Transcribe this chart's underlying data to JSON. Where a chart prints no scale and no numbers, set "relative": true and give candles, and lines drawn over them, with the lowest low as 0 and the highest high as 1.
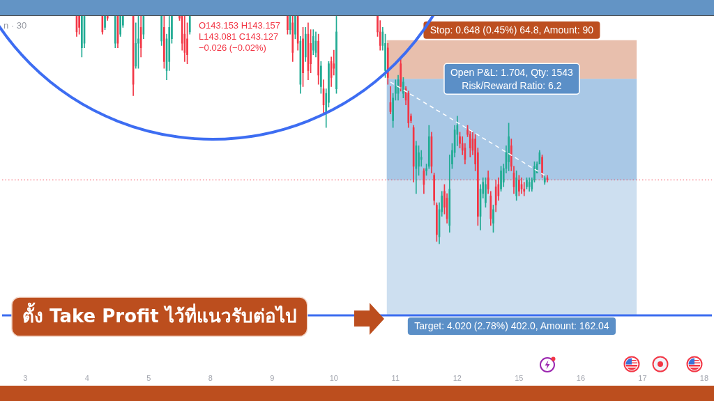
{
  "chart_data": {
    "type": "candlestick",
    "relative": true,
    "annotations": [
      "n · 30",
      "O143.153 H143.157 L143.081 C143.127 −0.026 (−0.02%)"
    ],
    "categories": [
      null,
      null,
      null,
      null,
      null,
      null,
      null,
      null,
      null,
      "3",
      null,
      null,
      null,
      null,
      null,
      null,
      null,
      null,
      null,
      null,
      null,
      null,
      null,
      null,
      null,
      null,
      null,
      null,
      null,
      null,
      null,
      null,
      null,
      "4",
      null,
      null,
      null,
      null,
      null,
      null,
      null,
      null,
      null,
      null,
      null,
      null,
      null,
      null,
      null,
      null,
      null,
      null,
      null,
      null,
      null,
      null,
      null,
      "5",
      null,
      null,
      null,
      null,
      null,
      null,
      null,
      null,
      null,
      null,
      null,
      null,
      null,
      null,
      null,
      null,
      null,
      null,
      null,
      null,
      null,
      null,
      null,
      "8",
      null,
      null,
      null,
      null,
      null,
      null,
      null,
      null,
      null,
      null,
      null,
      null,
      null,
      null,
      null,
      null,
      null,
      null,
      null,
      null,
      null,
      null,
      null,
      "9",
      null,
      null,
      null,
      null,
      null,
      null,
      null,
      null,
      null,
      null,
      null,
      null,
      null,
      null,
      null,
      null,
      null,
      null,
      null,
      null,
      null,
      null,
      null,
      "10",
      null,
      null,
      null,
      null,
      null,
      null,
      null,
      null,
      null,
      null,
      null,
      null,
      null,
      null,
      null,
      null,
      null,
      null,
      null,
      null,
      null,
      null,
      null,
      "11",
      null,
      null,
      null,
      null,
      null,
      null,
      null,
      null,
      null,
      null,
      null,
      null,
      null,
      null,
      null,
      null,
      null,
      null,
      null,
      null,
      null,
      null,
      null,
      "12",
      null,
      null,
      null,
      null,
      null,
      null,
      null,
      null,
      null,
      null,
      null,
      null,
      null,
      null,
      null,
      null,
      null,
      null,
      null,
      null,
      null,
      null,
      null,
      "15",
      null,
      null,
      null,
      null,
      null,
      null,
      null,
      null,
      null,
      null,
      null,
      null,
      null,
      null,
      null,
      null,
      null,
      null,
      null,
      null,
      null,
      null,
      null,
      "16",
      null,
      null,
      null,
      null,
      null,
      null,
      null,
      null,
      null,
      null,
      null,
      null,
      null,
      null,
      null,
      null,
      null,
      null,
      null,
      null,
      null,
      null,
      null,
      "17",
      null,
      null,
      null,
      null,
      null,
      null,
      null,
      null,
      null,
      null,
      null,
      null,
      null,
      null,
      null,
      null,
      null,
      null,
      null,
      null,
      null,
      null,
      null,
      "18",
      null,
      null,
      null
    ],
    "ohlc": [
      null,
      null,
      null,
      null,
      null,
      null,
      null,
      null,
      null,
      null,
      null,
      null,
      null,
      null,
      null,
      null,
      null,
      null,
      null,
      null,
      null,
      null,
      null,
      null,
      null,
      null,
      null,
      null,
      null,
      [
        1.0,
        1.0,
        0.91,
        0.93
      ],
      [
        1.0,
        1.0,
        0.92,
        0.95
      ],
      [
        0.86,
        1.0,
        0.82,
        1.0
      ],
      [
        0.88,
        1.0,
        0.86,
        1.0
      ],
      null,
      null,
      null,
      null,
      null,
      null,
      [
        1.0,
        1.0,
        0.92,
        0.93
      ],
      [
        0.95,
        1.0,
        0.94,
        1.0
      ],
      [
        1.0,
        1.0,
        0.98,
        0.99
      ],
      null,
      null,
      [
        0.88,
        1.0,
        0.86,
        1.0
      ],
      [
        1.0,
        1.0,
        0.86,
        0.88
      ],
      [
        0.92,
        1.0,
        0.91,
        1.0
      ],
      [
        0.96,
        1.0,
        0.95,
        1.0
      ],
      null,
      null,
      null,
      [
        1.0,
        1.0,
        0.65,
        0.7
      ],
      [
        0.78,
        0.97,
        0.77,
        0.88
      ],
      [
        0.88,
        1.0,
        0.77,
        0.9
      ],
      [
        0.95,
        1.0,
        0.82,
        0.86
      ],
      [
        0.92,
        1.0,
        0.9,
        1.0
      ],
      null,
      null,
      null,
      null,
      null,
      null,
      [
        0.89,
        1.0,
        0.87,
        1.0
      ],
      [
        0.95,
        1.0,
        0.77,
        0.8
      ],
      [
        0.76,
        0.92,
        0.72,
        0.9
      ],
      [
        0.8,
        1.0,
        0.76,
        0.95
      ],
      [
        0.9,
        1.0,
        0.88,
        1.0
      ],
      null,
      null,
      [
        1.0,
        1.0,
        0.98,
        0.99
      ],
      [
        1.0,
        1.0,
        0.85,
        0.88
      ],
      [
        0.92,
        1.0,
        0.8,
        0.84
      ],
      [
        0.9,
        0.97,
        0.79,
        0.83
      ],
      [
        0.93,
        1.0,
        0.92,
        1.0
      ],
      null,
      null,
      null,
      null,
      null,
      null,
      null,
      null,
      null,
      null,
      null,
      null,
      null,
      null,
      null,
      null,
      null,
      null,
      null,
      null,
      null,
      null,
      null,
      null,
      null,
      null,
      null,
      null,
      null,
      null,
      null,
      null,
      null,
      null,
      null,
      null,
      null,
      [
        1.0,
        1.0,
        0.92,
        0.94
      ],
      [
        0.94,
        1.0,
        0.92,
        1.0
      ],
      [
        0.97,
        1.0,
        0.8,
        0.84
      ],
      [
        0.92,
        1.0,
        0.9,
        1.0
      ],
      [
        1.0,
        1.0,
        0.85,
        0.88
      ],
      [
        0.7,
        0.91,
        0.66,
        0.89
      ],
      [
        0.9,
        0.95,
        0.69,
        0.75
      ],
      [
        0.82,
        0.95,
        0.8,
        0.92
      ],
      [
        0.92,
        0.97,
        0.72,
        0.76
      ],
      [
        0.88,
        0.94,
        0.75,
        0.79
      ],
      [
        0.85,
        0.94,
        0.83,
        0.91
      ],
      [
        0.84,
        0.93,
        0.82,
        0.89
      ],
      [
        0.89,
        0.92,
        0.7,
        0.74
      ],
      [
        0.69,
        0.8,
        0.66,
        0.78
      ],
      [
        0.68,
        0.72,
        0.57,
        0.61
      ],
      [
        0.58,
        0.68,
        0.51,
        0.66
      ],
      [
        0.62,
        0.8,
        0.6,
        0.79
      ],
      [
        0.8,
        0.82,
        0.69,
        0.73
      ],
      [
        0.79,
        0.85,
        0.74,
        0.77
      ],
      [
        0.68,
        1.0,
        0.66,
        0.93
      ],
      null,
      null,
      null,
      null,
      null,
      null,
      null,
      null,
      null,
      null,
      null,
      null,
      null,
      null,
      null,
      [
        1.0,
        1.0,
        0.91,
        0.93
      ],
      [
        0.93,
        0.98,
        0.85,
        0.87
      ],
      [
        0.87,
        0.95,
        0.85,
        0.93
      ],
      [
        0.76,
        0.92,
        0.73,
        0.88
      ],
      [
        0.86,
        0.88,
        0.7,
        0.73
      ],
      [
        0.62,
        0.69,
        0.57,
        0.58
      ],
      [
        0.54,
        0.66,
        0.51,
        0.64
      ],
      [
        0.66,
        0.72,
        0.63,
        0.69
      ],
      [
        0.66,
        0.74,
        0.63,
        0.72
      ],
      [
        0.79,
        0.81,
        0.67,
        0.69
      ],
      [
        0.66,
        0.73,
        0.64,
        0.71
      ],
      [
        0.68,
        0.69,
        0.61,
        0.63
      ],
      [
        0.66,
        0.67,
        0.51,
        0.53
      ],
      [
        0.56,
        0.57,
        0.53,
        0.54
      ],
      [
        0.51,
        0.52,
        0.27,
        0.34
      ],
      [
        0.33,
        0.45,
        0.22,
        0.43
      ],
      [
        0.34,
        0.43,
        0.3,
        0.4
      ],
      [
        0.37,
        0.41,
        0.34,
        0.38
      ],
      [
        0.32,
        0.33,
        0.22,
        0.26
      ],
      [
        0.32,
        0.35,
        0.3,
        0.33
      ],
      [
        0.34,
        0.52,
        0.33,
        0.47
      ],
      [
        0.47,
        0.49,
        0.31,
        0.34
      ],
      [
        0.3,
        0.31,
        0.17,
        0.19
      ],
      [
        0.17,
        0.18,
        0.01,
        0.04
      ],
      [
        0.03,
        0.18,
        0.0,
        0.15
      ],
      [
        0.14,
        0.23,
        0.12,
        0.21
      ],
      [
        0.23,
        0.26,
        0.13,
        0.16
      ],
      [
        0.2,
        0.22,
        0.09,
        0.11
      ],
      [
        0.08,
        0.39,
        0.05,
        0.24
      ],
      [
        0.35,
        0.44,
        0.33,
        0.41
      ],
      [
        0.4,
        0.52,
        0.38,
        0.5
      ],
      [
        0.48,
        0.56,
        0.43,
        0.52
      ],
      [
        0.47,
        0.49,
        0.42,
        0.44
      ],
      [
        0.44,
        0.47,
        0.39,
        0.41
      ],
      [
        0.42,
        0.44,
        0.35,
        0.37
      ],
      [
        0.5,
        0.52,
        0.47,
        0.48
      ],
      [
        0.48,
        0.5,
        0.38,
        0.42
      ],
      [
        0.46,
        0.49,
        0.39,
        0.41
      ],
      [
        0.46,
        0.48,
        0.32,
        0.35
      ],
      [
        0.4,
        0.42,
        0.08,
        0.12
      ],
      [
        0.12,
        0.26,
        0.06,
        0.24
      ],
      [
        0.22,
        0.29,
        0.2,
        0.27
      ],
      [
        0.18,
        0.29,
        0.16,
        0.26
      ],
      [
        0.29,
        0.32,
        0.22,
        0.24
      ],
      [
        0.21,
        0.23,
        0.08,
        0.11
      ],
      [
        0.09,
        0.17,
        0.05,
        0.15
      ],
      [
        0.25,
        0.28,
        0.14,
        0.17
      ],
      [
        0.26,
        0.29,
        0.19,
        0.21
      ],
      [
        0.24,
        0.34,
        0.23,
        0.32
      ],
      [
        0.27,
        0.35,
        0.25,
        0.33
      ],
      [
        0.33,
        0.43,
        0.31,
        0.4
      ],
      [
        0.36,
        0.53,
        0.32,
        0.47
      ],
      [
        0.43,
        0.46,
        0.32,
        0.34
      ],
      [
        0.31,
        0.34,
        0.22,
        0.25
      ],
      [
        0.21,
        0.32,
        0.19,
        0.29
      ],
      [
        0.28,
        0.3,
        0.21,
        0.23
      ],
      [
        0.26,
        0.29,
        0.22,
        0.24
      ],
      [
        0.24,
        0.27,
        0.21,
        0.23
      ],
      [
        0.25,
        0.29,
        0.24,
        0.28
      ],
      [
        0.25,
        0.29,
        0.23,
        0.27
      ],
      [
        0.24,
        0.29,
        0.23,
        0.28
      ],
      [
        0.28,
        0.36,
        0.27,
        0.34
      ],
      [
        0.31,
        0.36,
        0.31,
        0.35
      ],
      [
        0.35,
        0.41,
        0.35,
        0.4
      ],
      [
        0.38,
        0.39,
        0.29,
        0.31
      ],
      [
        0.27,
        0.3,
        0.26,
        0.29
      ],
      [
        0.29,
        0.3,
        0.27,
        0.28
      ],
      null,
      null,
      null,
      null,
      null,
      null,
      null,
      null,
      null,
      null,
      null,
      null,
      null,
      null,
      null,
      null,
      null,
      null,
      null,
      null,
      null,
      null,
      null,
      null,
      null,
      null,
      null,
      null,
      null,
      null,
      null,
      null,
      null,
      null,
      null,
      null,
      null,
      null,
      null,
      null,
      null,
      null,
      null,
      null,
      null,
      null,
      null,
      null,
      null,
      null,
      null,
      null,
      null,
      null,
      null,
      null,
      null,
      null,
      null,
      null,
      null,
      null,
      null,
      null
    ],
    "colors": [
      null,
      null,
      null,
      null,
      null,
      null,
      null,
      null,
      null,
      null,
      null,
      null,
      null,
      null,
      null,
      null,
      null,
      null,
      null,
      null,
      null,
      null,
      null,
      null,
      null,
      null,
      null,
      null,
      null,
      "#f23645",
      "#f23645",
      "#22ab94",
      "#22ab94",
      null,
      null,
      null,
      null,
      null,
      null,
      "#f23645",
      "#22ab94",
      "#f23645",
      null,
      null,
      "#22ab94",
      "#f23645",
      "#22ab94",
      "#22ab94",
      null,
      null,
      null,
      "#f23645",
      "#22ab94",
      "#22ab94",
      "#f23645",
      "#22ab94",
      null,
      null,
      null,
      null,
      null,
      null,
      "#22ab94",
      "#f23645",
      "#22ab94",
      "#22ab94",
      "#22ab94",
      null,
      null,
      "#f23645",
      "#f23645",
      "#f23645",
      "#f23645",
      "#22ab94",
      null,
      null,
      null,
      null,
      null,
      null,
      null,
      null,
      null,
      null,
      null,
      null,
      null,
      null,
      null,
      null,
      null,
      null,
      null,
      null,
      null,
      null,
      null,
      null,
      null,
      null,
      null,
      null,
      null,
      null,
      null,
      null,
      null,
      null,
      null,
      null,
      null,
      "#f23645",
      "#22ab94",
      "#f23645",
      "#22ab94",
      "#f23645",
      "#22ab94",
      "#f23645",
      "#22ab94",
      "#f23645",
      "#f23645",
      "#22ab94",
      "#22ab94",
      "#f23645",
      "#22ab94",
      "#f23645",
      "#22ab94",
      "#22ab94",
      "#f23645",
      "#f23645",
      "#22ab94",
      null,
      null,
      null,
      null,
      null,
      null,
      null,
      null,
      null,
      null,
      null,
      null,
      null,
      null,
      null,
      "#f23645",
      "#f23645",
      "#22ab94",
      "#22ab94",
      "#f23645",
      "#f23645",
      "#22ab94",
      "#22ab94",
      "#22ab94",
      "#f23645",
      "#22ab94",
      "#f23645",
      "#f23645",
      "#f23645",
      "#f23645",
      "#22ab94",
      "#22ab94",
      "#22ab94",
      "#f23645",
      "#22ab94",
      "#22ab94",
      "#f23645",
      "#f23645",
      "#f23645",
      "#22ab94",
      "#22ab94",
      "#f23645",
      "#f23645",
      "#22ab94",
      "#22ab94",
      "#22ab94",
      "#22ab94",
      "#f23645",
      "#f23645",
      "#f23645",
      "#f23645",
      "#f23645",
      "#f23645",
      "#f23645",
      "#f23645",
      "#22ab94",
      "#22ab94",
      "#22ab94",
      "#f23645",
      "#f23645",
      "#22ab94",
      "#f23645",
      "#f23645",
      "#22ab94",
      "#22ab94",
      "#22ab94",
      "#22ab94",
      "#f23645",
      "#f23645",
      "#22ab94",
      "#f23645",
      "#f23645",
      "#f23645",
      "#22ab94",
      "#22ab94",
      "#22ab94",
      "#22ab94",
      "#22ab94",
      "#22ab94",
      "#f23645",
      "#22ab94",
      "#f23645",
      null,
      null,
      null,
      null,
      null,
      null,
      null,
      null,
      null,
      null,
      null,
      null,
      null,
      null,
      null,
      null,
      null,
      null,
      null,
      null,
      null,
      null,
      null,
      null,
      null,
      null,
      null,
      null,
      null,
      null,
      null,
      null,
      null,
      null,
      null,
      null,
      null,
      null,
      null,
      null,
      null,
      null,
      null,
      null,
      null,
      null,
      null,
      null,
      null,
      null,
      null,
      null,
      null,
      null,
      null,
      null,
      null,
      null,
      null,
      null,
      null,
      null,
      null,
      null
    ],
    "series": [
      {
        "type": "line",
        "color": "#ffffff",
        "line_style": "dashed",
        "values": [
          null,
          null,
          null,
          null,
          null,
          null,
          null,
          null,
          null,
          null,
          null,
          null,
          null,
          null,
          null,
          null,
          null,
          null,
          null,
          null,
          null,
          null,
          null,
          null,
          null,
          null,
          null,
          null,
          null,
          null,
          null,
          null,
          null,
          null,
          null,
          null,
          null,
          null,
          null,
          null,
          null,
          null,
          null,
          null,
          null,
          null,
          null,
          null,
          null,
          null,
          null,
          null,
          null,
          null,
          null,
          null,
          null,
          null,
          null,
          null,
          null,
          null,
          null,
          null,
          null,
          null,
          null,
          null,
          null,
          null,
          null,
          null,
          null,
          null,
          null,
          null,
          null,
          null,
          null,
          null,
          null,
          null,
          null,
          null,
          null,
          null,
          null,
          null,
          null,
          null,
          null,
          null,
          null,
          null,
          null,
          null,
          null,
          null,
          null,
          null,
          null,
          null,
          null,
          null,
          null,
          null,
          null,
          null,
          null,
          null,
          null,
          null,
          null,
          null,
          null,
          null,
          null,
          null,
          null,
          null,
          null,
          null,
          null,
          null,
          null,
          null,
          null,
          null,
          null,
          null,
          null,
          null,
          null,
          null,
          null,
          null,
          null,
          null,
          null,
          null,
          null,
          null,
          null,
          null,
          null,
          null,
          null,
          null,
          null,
          null,
          null,
          0.71,
          0.703,
          0.696,
          0.69,
          0.683,
          0.676,
          0.669,
          0.662,
          0.655,
          0.649,
          0.642,
          0.635,
          0.628,
          0.621,
          0.614,
          0.608,
          0.601,
          0.594,
          0.587,
          0.58,
          0.573,
          0.567,
          0.56,
          0.553,
          0.546,
          0.539,
          0.532,
          0.526,
          0.519,
          0.512,
          0.505,
          0.498,
          0.491,
          0.485,
          0.478,
          0.471,
          0.464,
          0.457,
          0.45,
          0.444,
          0.437,
          0.43,
          0.423,
          0.416,
          0.409,
          0.403,
          0.396,
          0.389,
          0.382,
          0.375,
          0.368,
          0.362,
          0.355,
          0.348,
          0.341,
          0.334,
          0.327,
          0.321,
          0.314,
          0.307,
          0.3,
          null,
          null,
          null,
          null,
          null,
          null,
          null,
          null,
          null,
          null,
          null,
          null,
          null,
          null,
          null,
          null,
          null,
          null,
          null,
          null,
          null,
          null,
          null,
          null,
          null,
          null,
          null,
          null,
          null,
          null,
          null,
          null,
          null,
          null,
          null,
          null,
          null,
          null,
          null,
          null,
          null,
          null,
          null,
          null,
          null,
          null,
          null,
          null,
          null,
          null,
          null,
          null,
          null,
          null,
          null,
          null,
          null,
          null,
          null,
          null,
          null,
          null,
          null,
          null,
          null
        ]
      }
    ],
    "tick_labels": "x",
    "grid": false,
    "legend": false,
    "marker": "none",
    "ref_lines": [
      {
        "axis": "y",
        "value": -0.315,
        "label": "ตั้ง Take Profit ไว้ที่แนวรับต่อไป",
        "color": "#3b6cf0"
      },
      {
        "axis": "y",
        "value": 0.28,
        "color": "#f23645",
        "line_style": "dotted"
      }
    ],
    "bands": [
      {
        "axis": "y",
        "from": 0.724,
        "to": 0.894,
        "label": "Stop: 0.648 (0.45%) 64.8, Amount: 90",
        "color": "#e8bfad"
      },
      {
        "axis": "y",
        "from": -0.315,
        "to": 0.724,
        "label": "Target: 4.020 (2.78%) 402.0, Amount: 162.04",
        "color": "#cddff0"
      },
      {
        "axis": "y",
        "from": 0.28,
        "to": 0.724,
        "label": "Open P&L: 1.704, Qty: 1543\nRisk/Reward Ratio: 6.2",
        "color": "#a9c8e6"
      }
    ]
  }
}
